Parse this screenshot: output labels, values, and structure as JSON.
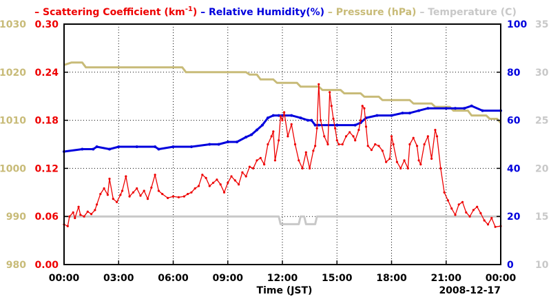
{
  "chart_data": {
    "type": "line",
    "title": "",
    "xlabel": "Time (JST)",
    "date_label": "2008-12-17",
    "x_ticks": [
      "00:00",
      "03:00",
      "06:00",
      "09:00",
      "12:00",
      "15:00",
      "18:00",
      "21:00",
      "00:00"
    ],
    "xlim_hours": [
      0,
      24
    ],
    "grid": true,
    "legend": {
      "placement": "top",
      "items": [
        {
          "dash": "–",
          "label": "Scattering Coefficient (km",
          "sup": "-1",
          "close": ")",
          "color": "#ee0000"
        },
        {
          "dash": "–",
          "label": "Relative Humidity(%)",
          "color": "#0000dd"
        },
        {
          "dash": "–",
          "label": "Pressure (hPa)",
          "color": "#c8bb78"
        },
        {
          "dash": "–",
          "label": "Temperature (C)",
          "color": "#c8c8c8"
        }
      ]
    },
    "axes": {
      "pressure": {
        "side": "left-outer",
        "ylim": [
          980,
          1030
        ],
        "ticks": [
          "980",
          "990",
          "1000",
          "1010",
          "1020",
          "1030"
        ],
        "color": "#c8bb78"
      },
      "scattering": {
        "side": "left-inner",
        "ylim": [
          0,
          0.3
        ],
        "ticks": [
          "0.00",
          "0.06",
          "0.12",
          "0.18",
          "0.24",
          "0.30"
        ],
        "color": "#ee0000"
      },
      "humidity": {
        "side": "right-inner",
        "ylim": [
          0,
          100
        ],
        "ticks": [
          "0",
          "20",
          "40",
          "60",
          "80",
          "100"
        ],
        "color": "#0000dd"
      },
      "temperature": {
        "side": "right-outer",
        "ylim": [
          10,
          35
        ],
        "ticks": [
          "10",
          "15",
          "20",
          "25",
          "30",
          "35"
        ],
        "color": "#c8c8c8"
      }
    },
    "series": [
      {
        "name": "Scattering Coefficient (km-1)",
        "axis": "scattering",
        "color": "#ee0000",
        "markers": true,
        "x": [
          0,
          0.2,
          0.3,
          0.5,
          0.6,
          0.8,
          0.9,
          1.1,
          1.3,
          1.5,
          1.7,
          1.8,
          2.0,
          2.2,
          2.4,
          2.5,
          2.7,
          2.9,
          3.1,
          3.2,
          3.4,
          3.6,
          3.8,
          4.0,
          4.2,
          4.4,
          4.6,
          4.8,
          5.0,
          5.2,
          5.4,
          5.7,
          6.0,
          6.3,
          6.6,
          6.8,
          7.0,
          7.2,
          7.4,
          7.6,
          7.8,
          8.0,
          8.2,
          8.4,
          8.6,
          8.8,
          9.0,
          9.2,
          9.4,
          9.6,
          9.8,
          10.0,
          10.2,
          10.4,
          10.6,
          10.8,
          11.0,
          11.2,
          11.4,
          11.5,
          11.6,
          11.8,
          11.9,
          12.0,
          12.1,
          12.3,
          12.5,
          12.7,
          12.9,
          13.1,
          13.3,
          13.5,
          13.7,
          13.8,
          13.9,
          14.0,
          14.1,
          14.3,
          14.5,
          14.6,
          14.7,
          14.8,
          14.9,
          15.0,
          15.1,
          15.3,
          15.5,
          15.7,
          15.9,
          16.0,
          16.2,
          16.3,
          16.4,
          16.5,
          16.6,
          16.7,
          16.9,
          17.1,
          17.3,
          17.5,
          17.7,
          17.9,
          18.0,
          18.1,
          18.3,
          18.5,
          18.7,
          18.9,
          19.0,
          19.2,
          19.4,
          19.5,
          19.6,
          19.8,
          20.0,
          20.2,
          20.4,
          20.5,
          20.7,
          20.9,
          21.1,
          21.3,
          21.5,
          21.7,
          21.9,
          22.1,
          22.3,
          22.5,
          22.7,
          22.9,
          23.1,
          23.3,
          23.5,
          23.7,
          24.0
        ],
        "values": [
          0.05,
          0.048,
          0.06,
          0.065,
          0.058,
          0.072,
          0.062,
          0.06,
          0.066,
          0.063,
          0.068,
          0.075,
          0.088,
          0.095,
          0.087,
          0.107,
          0.082,
          0.078,
          0.087,
          0.092,
          0.11,
          0.085,
          0.09,
          0.095,
          0.086,
          0.092,
          0.082,
          0.096,
          0.112,
          0.092,
          0.088,
          0.083,
          0.085,
          0.084,
          0.085,
          0.088,
          0.09,
          0.095,
          0.098,
          0.112,
          0.108,
          0.098,
          0.102,
          0.106,
          0.1,
          0.09,
          0.102,
          0.11,
          0.105,
          0.1,
          0.115,
          0.11,
          0.122,
          0.12,
          0.13,
          0.133,
          0.125,
          0.15,
          0.16,
          0.166,
          0.13,
          0.155,
          0.185,
          0.18,
          0.19,
          0.16,
          0.175,
          0.15,
          0.13,
          0.12,
          0.14,
          0.12,
          0.142,
          0.148,
          0.17,
          0.225,
          0.18,
          0.16,
          0.15,
          0.215,
          0.198,
          0.182,
          0.17,
          0.155,
          0.15,
          0.15,
          0.16,
          0.165,
          0.16,
          0.155,
          0.168,
          0.18,
          0.198,
          0.195,
          0.172,
          0.148,
          0.143,
          0.15,
          0.148,
          0.142,
          0.128,
          0.132,
          0.16,
          0.15,
          0.128,
          0.12,
          0.13,
          0.12,
          0.15,
          0.158,
          0.148,
          0.13,
          0.125,
          0.15,
          0.16,
          0.132,
          0.168,
          0.16,
          0.12,
          0.09,
          0.08,
          0.07,
          0.062,
          0.075,
          0.078,
          0.065,
          0.06,
          0.068,
          0.072,
          0.064,
          0.055,
          0.05,
          0.058,
          0.047,
          0.048
        ]
      },
      {
        "name": "Relative Humidity(%)",
        "axis": "humidity",
        "color": "#0000dd",
        "markers": true,
        "x": [
          0,
          1.0,
          1.6,
          1.8,
          2.5,
          3.0,
          4.0,
          5.0,
          5.2,
          6.0,
          7.0,
          8.0,
          8.5,
          9.0,
          9.5,
          10.0,
          10.3,
          10.6,
          10.9,
          11.2,
          11.5,
          11.8,
          12.0,
          12.5,
          13.0,
          13.4,
          13.6,
          13.8,
          14.0,
          15.0,
          16.0,
          16.3,
          16.6,
          17.2,
          18.0,
          18.6,
          19.0,
          19.5,
          20.0,
          21.0,
          21.5,
          22.0,
          22.4,
          23.0,
          24.0
        ],
        "values": [
          47,
          48,
          48,
          49,
          48,
          49,
          49,
          49,
          48,
          49,
          49,
          50,
          50,
          51,
          51,
          53,
          54,
          56,
          58,
          61,
          62,
          62,
          62,
          62,
          61,
          60,
          60,
          58,
          58,
          58,
          58,
          59,
          61,
          62,
          62,
          63,
          63,
          64,
          65,
          65,
          65,
          65,
          66,
          64,
          64
        ]
      },
      {
        "name": "Pressure (hPa)",
        "axis": "pressure",
        "color": "#c8bb78",
        "markers": false,
        "x": [
          0,
          0.4,
          1.0,
          1.2,
          6.5,
          6.7,
          10.0,
          10.2,
          10.6,
          10.8,
          11.5,
          11.7,
          12.8,
          13.0,
          14.0,
          14.2,
          15.2,
          15.4,
          16.3,
          16.5,
          17.3,
          17.5,
          19.0,
          19.2,
          20.2,
          20.4,
          21.2,
          21.4,
          22.2,
          22.4,
          23.2,
          23.4,
          23.8,
          24.0
        ],
        "values": [
          1021.5,
          1022.0,
          1022.0,
          1021.0,
          1021.0,
          1020.0,
          1020.0,
          1019.5,
          1019.5,
          1018.5,
          1018.5,
          1017.8,
          1017.8,
          1017.0,
          1017.0,
          1016.3,
          1016.3,
          1015.6,
          1015.6,
          1014.9,
          1014.9,
          1014.2,
          1014.2,
          1013.5,
          1013.5,
          1012.8,
          1012.8,
          1012.0,
          1012.0,
          1011.0,
          1011.0,
          1010.3,
          1010.3,
          1009.5
        ]
      },
      {
        "name": "Temperature (C)",
        "axis": "temperature",
        "color": "#c8c8c8",
        "markers": false,
        "x": [
          0,
          11.8,
          11.9,
          12.9,
          13.0,
          13.2,
          13.3,
          13.8,
          13.9,
          24.0
        ],
        "values": [
          15.0,
          15.0,
          14.2,
          14.2,
          15.0,
          15.0,
          14.2,
          14.2,
          15.0,
          15.0
        ]
      }
    ]
  }
}
